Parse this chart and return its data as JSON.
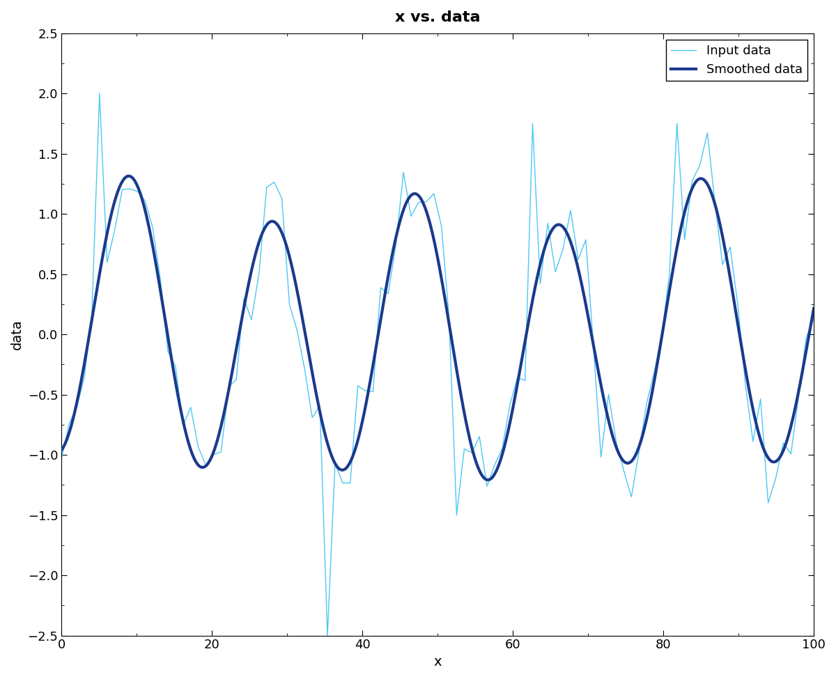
{
  "title": "x vs. data",
  "xlabel": "x",
  "ylabel": "data",
  "xlim": [
    0,
    100
  ],
  "ylim": [
    -2.5,
    2.5
  ],
  "input_color": "#4DC8F0",
  "smooth_color": "#1A3A8C",
  "input_linewidth": 1.0,
  "smooth_linewidth": 3.0,
  "legend_labels": [
    "Input data",
    "Smoothed data"
  ],
  "title_fontsize": 16,
  "title_fontweight": "bold",
  "axis_fontsize": 14,
  "tick_fontsize": 13,
  "background_color": "#ffffff",
  "xticks": [
    0,
    20,
    40,
    60,
    80,
    100
  ],
  "yticks": [
    -2.5,
    -2,
    -1.5,
    -1,
    -0.5,
    0,
    0.5,
    1,
    1.5,
    2,
    2.5
  ]
}
